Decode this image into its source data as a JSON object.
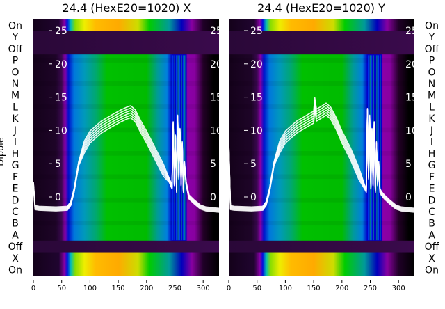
{
  "chart_data": {
    "type": "heatmap",
    "ylabel": "Dipole",
    "row_labels": [
      "On",
      "Y",
      "Off",
      "P",
      "O",
      "N",
      "M",
      "L",
      "K",
      "J",
      "I",
      "H",
      "G",
      "F",
      "E",
      "D",
      "C",
      "B",
      "A",
      "Off",
      "X",
      "On"
    ],
    "x_ticks": [
      0,
      50,
      100,
      150,
      200,
      250,
      300
    ],
    "xlim": [
      0,
      328
    ],
    "inner_y_ticks": [
      0,
      5,
      10,
      15,
      20,
      25
    ],
    "panels": [
      {
        "title": "24.4 (HexE20=1020) X",
        "line_series": [
          {
            "name": "trace",
            "x": [
              0,
              3,
              10,
              40,
              60,
              66,
              72,
              80,
              90,
              100,
              120,
              140,
              155,
              165,
              172,
              180,
              190,
              200,
              215,
              230,
              240,
              245,
              247,
              249,
              251,
              253,
              255,
              257,
              259,
              261,
              263,
              265,
              267,
              270,
              275,
              285,
              295,
              305,
              328
            ],
            "y": [
              2,
              -1.6,
              -1.7,
              -1.8,
              -1.7,
              -1,
              1,
              5,
              7.5,
              9,
              10.5,
              11.5,
              12.2,
              12.6,
              12.8,
              12.2,
              10.5,
              9,
              6.5,
              4,
              2.5,
              1.5,
              11,
              2,
              9,
              1,
              12,
              3,
              10,
              2,
              8,
              1,
              5,
              2,
              0,
              -0.8,
              -1.5,
              -1.8,
              -2
            ]
          }
        ]
      },
      {
        "title": "24.4 (HexE20=1020) Y",
        "line_series": [
          {
            "name": "trace",
            "x": [
              0,
              3,
              10,
              40,
              60,
              66,
              72,
              80,
              90,
              100,
              120,
              140,
              150,
              152,
              155,
              165,
              172,
              180,
              190,
              200,
              215,
              230,
              240,
              243,
              245,
              247,
              249,
              251,
              253,
              255,
              257,
              259,
              261,
              263,
              265,
              267,
              270,
              275,
              285,
              295,
              305,
              328
            ],
            "y": [
              8,
              -1.6,
              -1.7,
              -1.8,
              -1.7,
              -1,
              1,
              5,
              7.5,
              9,
              10.5,
              11.5,
              12,
              14,
              12.3,
              12.8,
              13.2,
              12.6,
              11,
              9,
              6.5,
              3.5,
              1.5,
              1,
              13,
              3,
              12,
              1.5,
              10,
              2,
              11,
              1,
              8,
              2,
              5,
              1,
              0.5,
              0,
              -0.8,
              -1.5,
              -1.8,
              -2
            ]
          }
        ]
      }
    ]
  }
}
